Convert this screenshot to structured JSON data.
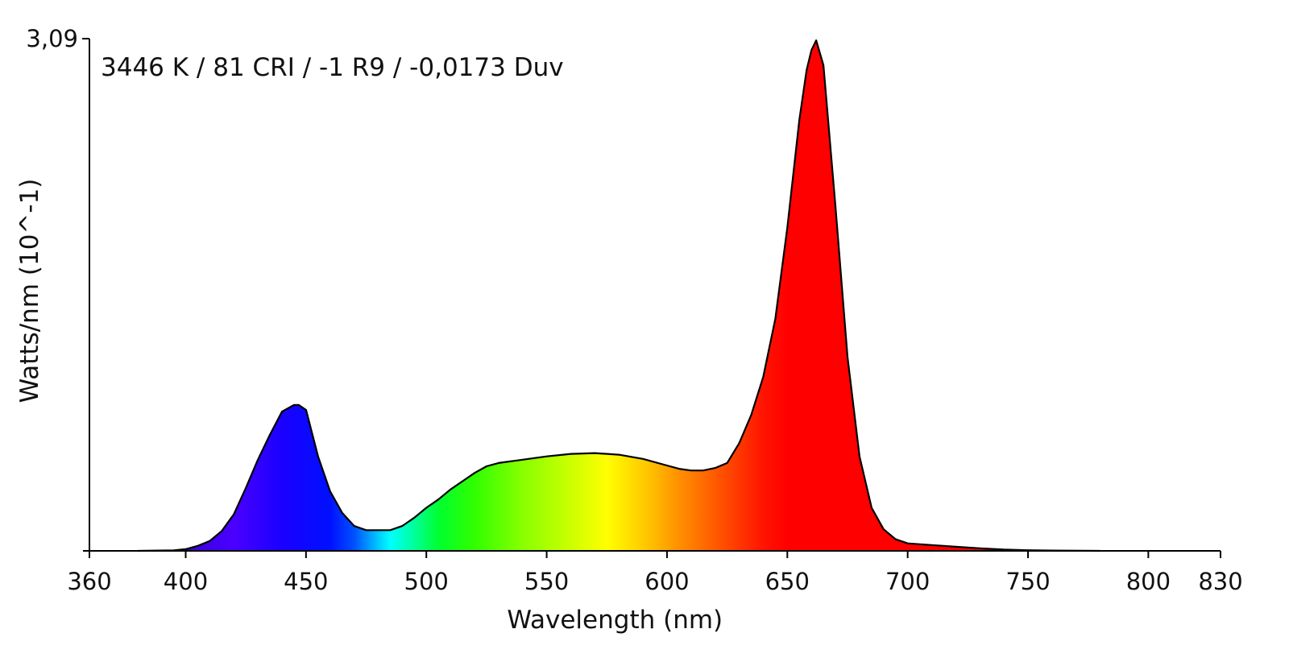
{
  "chart_data": {
    "type": "area",
    "title": "",
    "annotation": "3446 K / 81 CRI / -1 R9 / -0,0173 Duv",
    "xlabel": "Wavelength (nm)",
    "ylabel": "Watts/nm (10^-1)",
    "xlim": [
      360,
      830
    ],
    "ylim": [
      0,
      3.09
    ],
    "x_ticks": [
      360,
      400,
      450,
      500,
      550,
      600,
      650,
      700,
      750,
      800,
      830
    ],
    "y_ticks": [
      {
        "value": 3.09,
        "label": "3,09"
      }
    ],
    "grid": false,
    "legend": "none",
    "fill": "visible-spectrum color gradient",
    "outline_color": "#000000",
    "series": [
      {
        "x": [
          380,
          395,
          400,
          405,
          410,
          415,
          420,
          425,
          430,
          435,
          440,
          445,
          447,
          450,
          455,
          460,
          465,
          470,
          475,
          480,
          485,
          490,
          495,
          500,
          505,
          510,
          515,
          520,
          525,
          530,
          540,
          550,
          560,
          570,
          580,
          590,
          600,
          605,
          610,
          615,
          620,
          625,
          630,
          635,
          640,
          645,
          650,
          655,
          658,
          660,
          662,
          665,
          670,
          675,
          680,
          685,
          690,
          695,
          700,
          710,
          720,
          730,
          740,
          750,
          760,
          780
        ],
        "y": [
          0.0,
          0.003,
          0.01,
          0.03,
          0.06,
          0.12,
          0.22,
          0.38,
          0.55,
          0.7,
          0.84,
          0.88,
          0.88,
          0.85,
          0.57,
          0.36,
          0.23,
          0.15,
          0.125,
          0.125,
          0.125,
          0.15,
          0.2,
          0.26,
          0.31,
          0.37,
          0.42,
          0.47,
          0.51,
          0.53,
          0.55,
          0.57,
          0.585,
          0.59,
          0.58,
          0.555,
          0.515,
          0.495,
          0.485,
          0.485,
          0.5,
          0.53,
          0.65,
          0.82,
          1.05,
          1.4,
          1.95,
          2.6,
          2.9,
          3.02,
          3.08,
          2.93,
          2.08,
          1.17,
          0.57,
          0.26,
          0.13,
          0.07,
          0.045,
          0.035,
          0.025,
          0.015,
          0.008,
          0.004,
          0.002,
          0.0
        ]
      }
    ]
  }
}
